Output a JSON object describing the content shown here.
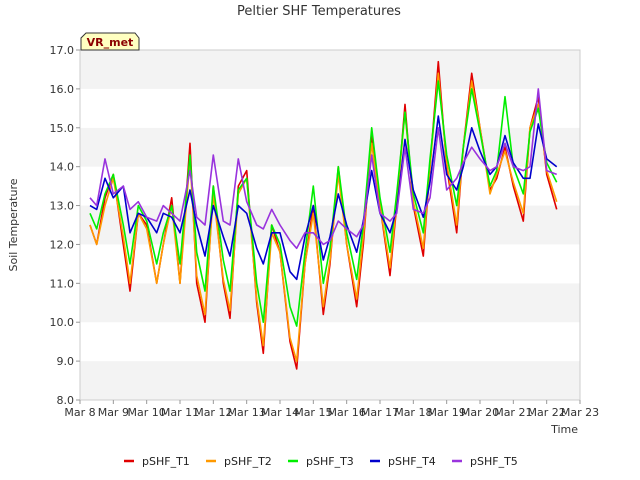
{
  "chart_data": {
    "type": "line",
    "title": "Peltier SHF Temperatures",
    "xlabel": "Time",
    "ylabel": "Soil Temperature",
    "badge": "VR_met",
    "ylim": [
      8.0,
      17.0
    ],
    "yticks": [
      8.0,
      9.0,
      10.0,
      11.0,
      12.0,
      13.0,
      14.0,
      15.0,
      16.0,
      17.0
    ],
    "ytick_labels": [
      "8.0",
      "9.0",
      "10.0",
      "11.0",
      "12.0",
      "13.0",
      "14.0",
      "15.0",
      "16.0",
      "17.0"
    ],
    "xlim": [
      8,
      23
    ],
    "xticks": [
      8,
      9,
      10,
      11,
      12,
      13,
      14,
      15,
      16,
      17,
      18,
      19,
      20,
      21,
      22,
      23
    ],
    "xtick_labels": [
      "Mar 8",
      "Mar 9",
      "Mar 10",
      "Mar 11",
      "Mar 12",
      "Mar 13",
      "Mar 14",
      "Mar 15",
      "Mar 16",
      "Mar 17",
      "Mar 18",
      "Mar 19",
      "Mar 20",
      "Mar 21",
      "Mar 22",
      "Mar 23"
    ],
    "grid": "horizontal bands",
    "legend_position": "bottom",
    "x": [
      8.3,
      8.5,
      8.75,
      9.0,
      9.3,
      9.5,
      9.75,
      10.0,
      10.3,
      10.5,
      10.75,
      11.0,
      11.3,
      11.5,
      11.75,
      12.0,
      12.3,
      12.5,
      12.75,
      13.0,
      13.3,
      13.5,
      13.75,
      14.0,
      14.3,
      14.5,
      14.75,
      15.0,
      15.3,
      15.5,
      15.75,
      16.0,
      16.3,
      16.5,
      16.75,
      17.0,
      17.3,
      17.5,
      17.75,
      18.0,
      18.3,
      18.5,
      18.75,
      19.0,
      19.3,
      19.5,
      19.75,
      20.0,
      20.3,
      20.5,
      20.75,
      21.0,
      21.3,
      21.5,
      21.75,
      22.0,
      22.3
    ],
    "series": [
      {
        "name": "pSHF_T1",
        "color": "#e00000",
        "values": [
          12.5,
          12.0,
          13.2,
          13.8,
          12.0,
          10.8,
          12.8,
          12.5,
          11.0,
          12.0,
          13.2,
          11.0,
          14.6,
          11.0,
          10.0,
          13.5,
          11.0,
          10.1,
          13.5,
          13.9,
          10.5,
          9.2,
          12.5,
          11.8,
          9.5,
          8.8,
          11.5,
          13.0,
          10.2,
          11.5,
          14.0,
          12.0,
          10.4,
          12.0,
          14.8,
          13.0,
          11.2,
          13.0,
          15.6,
          13.0,
          11.7,
          14.0,
          16.7,
          14.0,
          12.3,
          14.5,
          16.4,
          15.0,
          13.4,
          13.7,
          14.5,
          13.5,
          12.6,
          15.0,
          15.8,
          13.8,
          12.9
        ]
      },
      {
        "name": "pSHF_T2",
        "color": "#ff9900",
        "values": [
          12.5,
          12.0,
          13.0,
          13.7,
          12.2,
          11.0,
          12.8,
          12.4,
          11.0,
          12.0,
          13.0,
          11.0,
          14.2,
          11.2,
          10.2,
          13.3,
          11.1,
          10.3,
          13.3,
          13.7,
          10.6,
          9.4,
          12.3,
          11.8,
          9.6,
          9.0,
          11.5,
          12.8,
          10.4,
          11.6,
          13.8,
          12.0,
          10.6,
          12.2,
          14.6,
          13.0,
          11.4,
          13.1,
          15.4,
          13.1,
          11.9,
          14.0,
          16.4,
          14.1,
          12.5,
          14.5,
          16.2,
          15.0,
          13.3,
          13.8,
          14.4,
          13.6,
          12.8,
          15.0,
          15.6,
          13.9,
          13.1
        ]
      },
      {
        "name": "pSHF_T3",
        "color": "#00ee00",
        "values": [
          12.8,
          12.4,
          13.3,
          13.8,
          12.5,
          11.5,
          13.0,
          12.6,
          11.5,
          12.3,
          13.0,
          11.5,
          14.3,
          11.8,
          10.8,
          13.5,
          11.6,
          10.8,
          13.4,
          13.7,
          11.0,
          10.0,
          12.5,
          12.0,
          10.4,
          9.9,
          11.8,
          13.5,
          11.0,
          11.9,
          14.0,
          12.3,
          11.1,
          12.5,
          15.0,
          13.2,
          11.8,
          13.3,
          15.4,
          13.3,
          12.3,
          14.2,
          16.2,
          14.3,
          13.0,
          14.5,
          16.0,
          14.9,
          13.5,
          13.9,
          15.8,
          14.0,
          13.3,
          14.9,
          15.5,
          14.1,
          13.6
        ]
      },
      {
        "name": "pSHF_T4",
        "color": "#0000cc",
        "values": [
          13.0,
          12.9,
          13.7,
          13.2,
          13.5,
          12.3,
          12.8,
          12.7,
          12.3,
          12.8,
          12.7,
          12.3,
          13.4,
          12.5,
          11.7,
          13.0,
          12.2,
          11.7,
          13.0,
          12.8,
          11.9,
          11.5,
          12.3,
          12.3,
          11.3,
          11.1,
          12.2,
          13.0,
          11.6,
          12.2,
          13.3,
          12.5,
          11.8,
          12.6,
          13.9,
          12.8,
          12.3,
          12.9,
          14.7,
          13.4,
          12.7,
          13.6,
          15.3,
          13.8,
          13.4,
          14.0,
          15.0,
          14.4,
          13.8,
          14.0,
          14.8,
          14.1,
          13.7,
          13.7,
          15.1,
          14.2,
          14.0
        ]
      },
      {
        "name": "pSHF_T5",
        "color": "#9933dd",
        "values": [
          13.2,
          13.0,
          14.2,
          13.3,
          13.5,
          12.9,
          13.1,
          12.7,
          12.6,
          13.0,
          12.8,
          12.6,
          13.9,
          12.7,
          12.5,
          14.3,
          12.6,
          12.5,
          14.2,
          13.1,
          12.5,
          12.4,
          12.9,
          12.5,
          12.1,
          11.9,
          12.3,
          12.3,
          12.0,
          12.1,
          12.6,
          12.4,
          12.2,
          12.5,
          14.3,
          12.8,
          12.6,
          12.8,
          14.5,
          12.9,
          12.8,
          13.2,
          15.0,
          13.4,
          13.7,
          14.1,
          14.5,
          14.2,
          13.9,
          14.0,
          14.6,
          14.0,
          13.9,
          14.0,
          16.0,
          13.9,
          13.8
        ]
      }
    ]
  }
}
